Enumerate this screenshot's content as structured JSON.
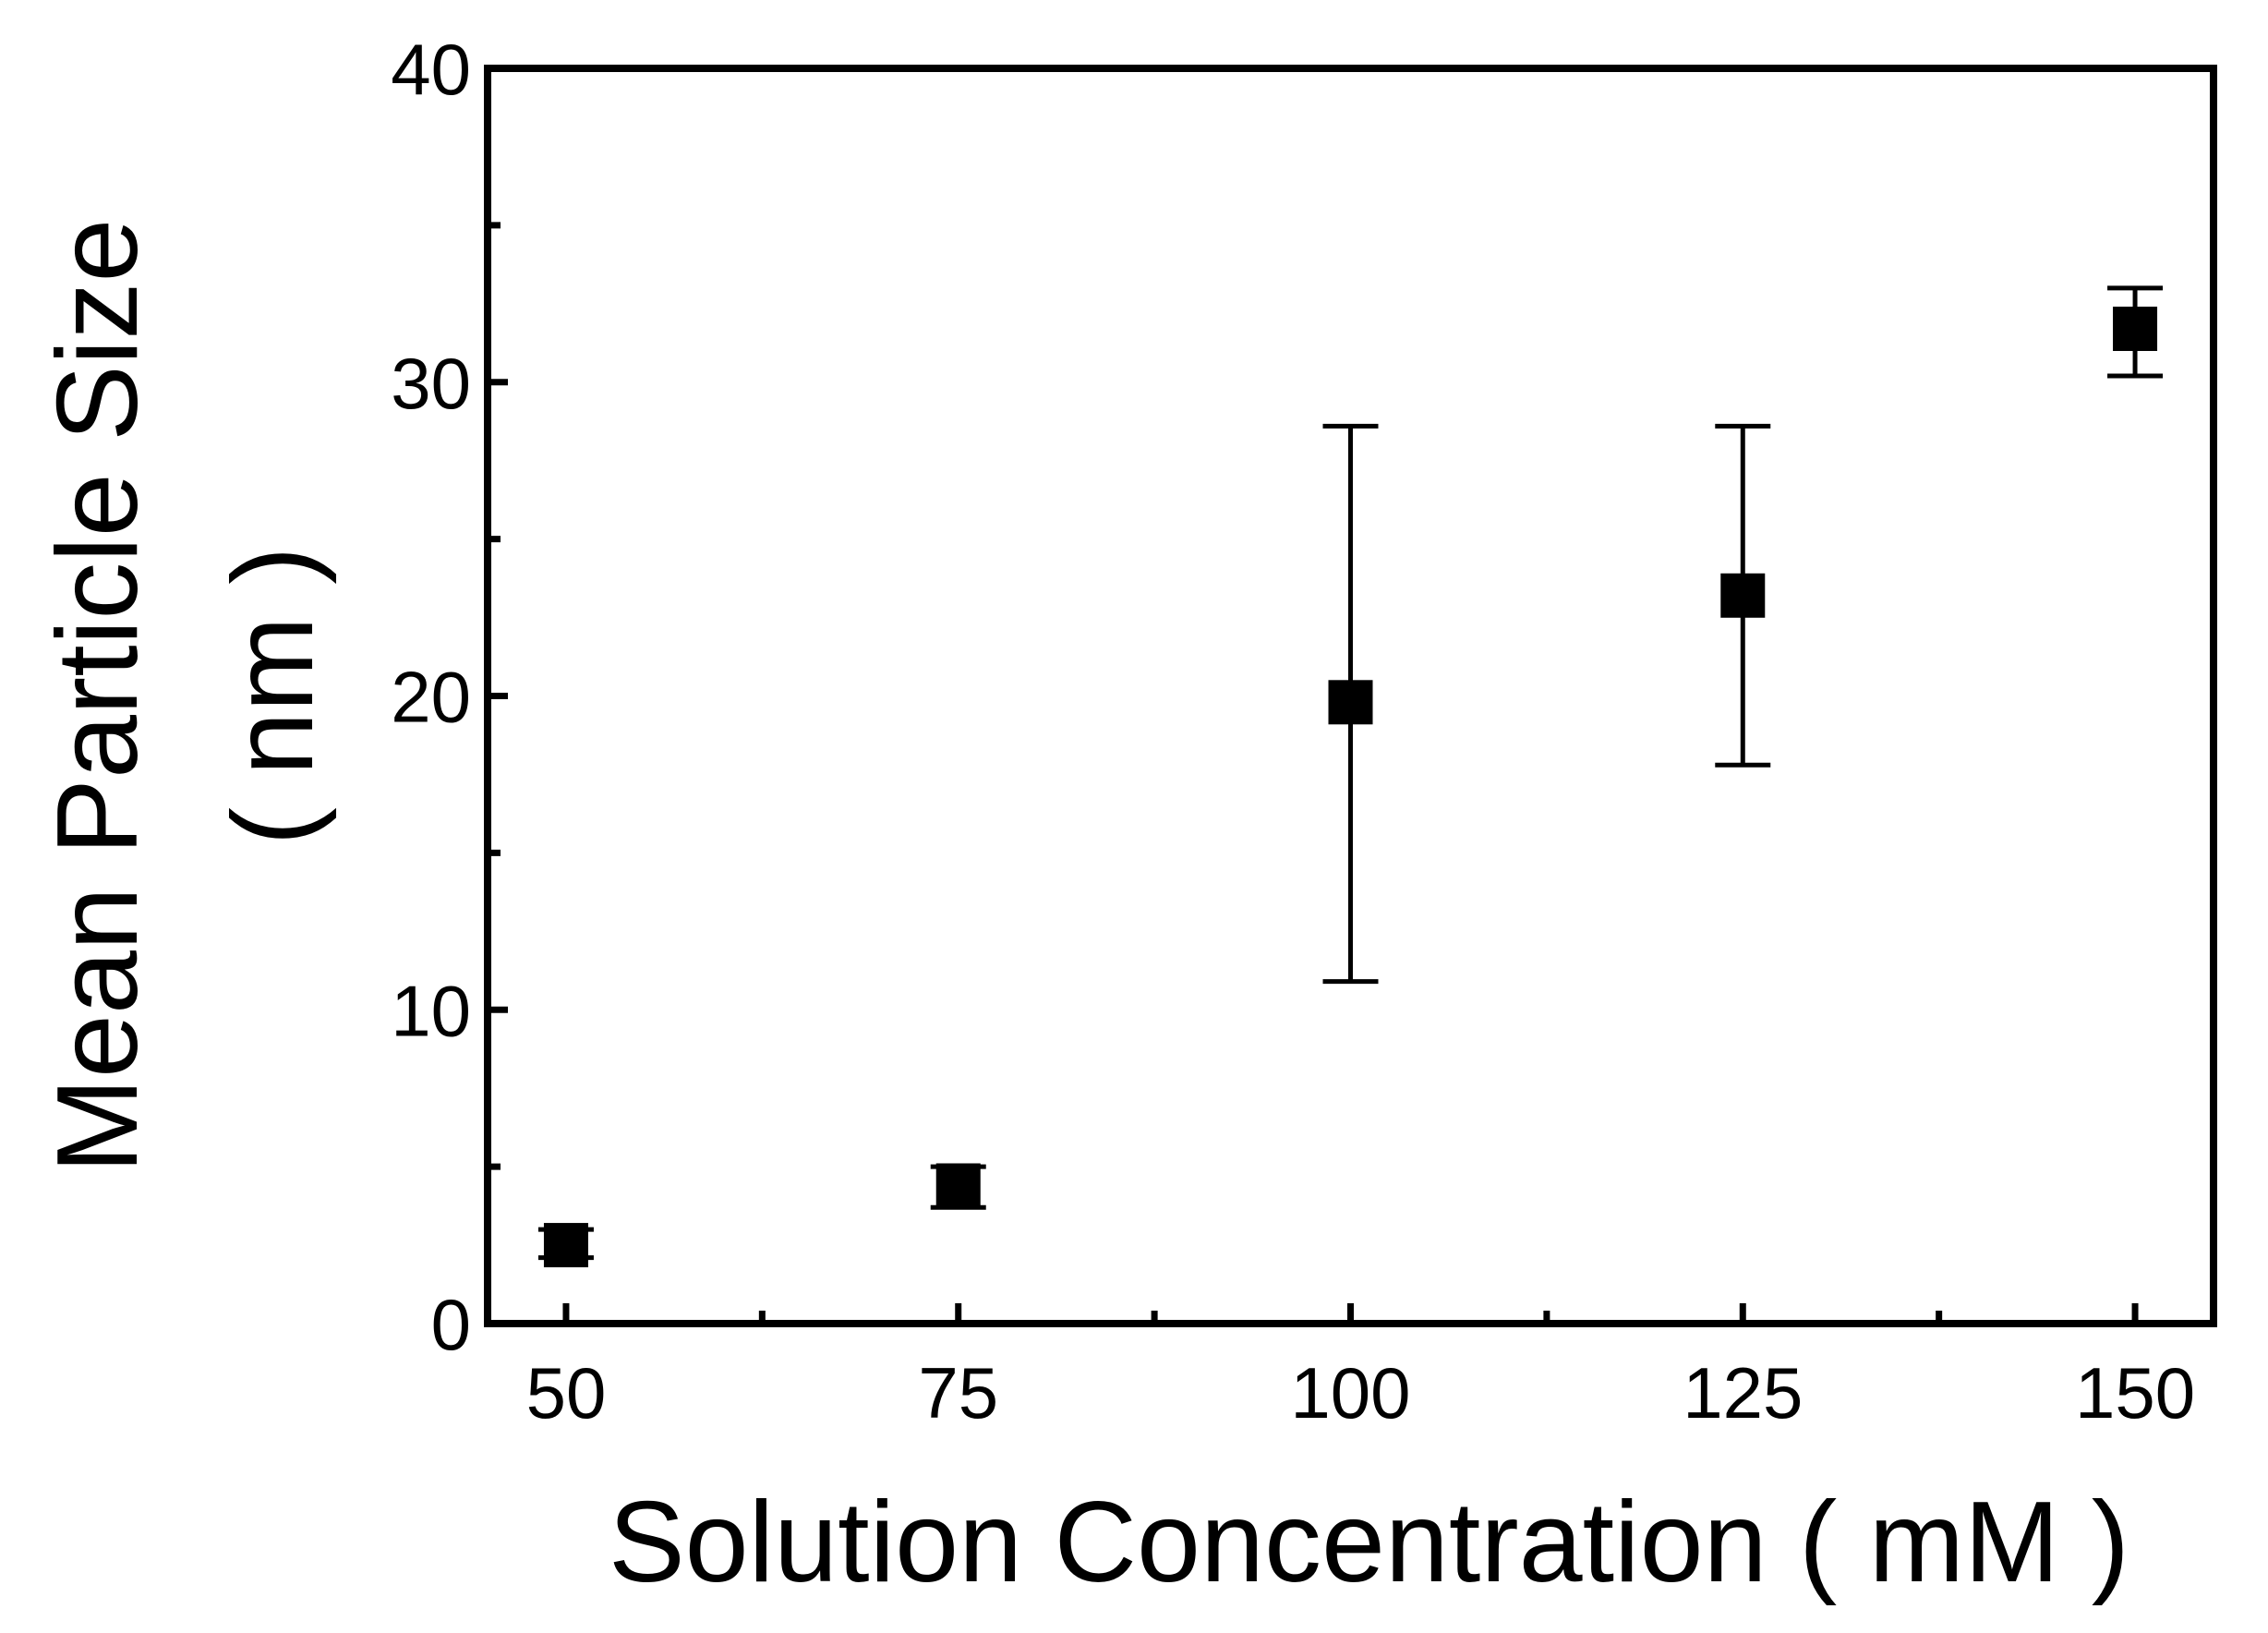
{
  "chart_data": {
    "type": "scatter",
    "title": "",
    "xlabel": "Solution Concentration ( mM )",
    "ylabel_line1": "Mean Particle Size",
    "ylabel_line2": "( nm )",
    "xlim": [
      45,
      155
    ],
    "ylim": [
      0,
      40
    ],
    "x_ticks": [
      50,
      75,
      100,
      125,
      150
    ],
    "x_tick_labels": [
      "50",
      "75",
      "100",
      "125",
      "150"
    ],
    "x_minor_ticks": [
      62.5,
      87.5,
      112.5,
      137.5
    ],
    "y_ticks": [
      0,
      10,
      20,
      30,
      40
    ],
    "y_tick_labels": [
      "0",
      "10",
      "20",
      "30",
      "40"
    ],
    "y_minor_ticks": [
      5,
      15,
      25,
      35
    ],
    "grid": false,
    "legend": "none",
    "marker": "square",
    "color": "#000000",
    "series": [
      {
        "x": [
          50,
          75,
          100,
          125,
          150
        ],
        "y": [
          2.5,
          4.4,
          19.8,
          23.2,
          31.7
        ],
        "err_low": [
          2.1,
          3.7,
          10.9,
          17.8,
          30.2
        ],
        "err_high": [
          3.0,
          5.0,
          28.6,
          28.6,
          33.0
        ]
      }
    ]
  }
}
